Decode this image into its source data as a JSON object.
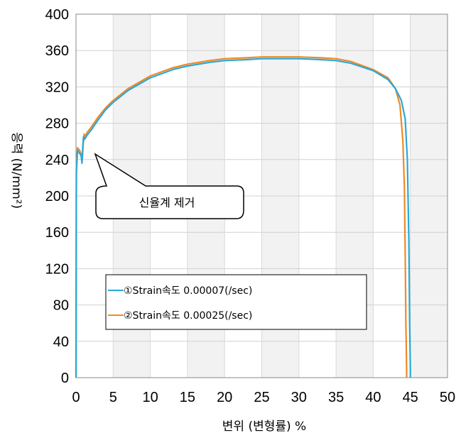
{
  "chart_data": {
    "type": "line",
    "xlabel": "변위 (변형률) %",
    "ylabel": "응력 (N/mm²)",
    "xlim": [
      0,
      50
    ],
    "ylim": [
      0,
      400
    ],
    "x_ticks": [
      0,
      5,
      10,
      15,
      20,
      25,
      30,
      35,
      40,
      45,
      50
    ],
    "y_ticks": [
      0,
      40,
      80,
      120,
      160,
      200,
      240,
      280,
      320,
      360,
      400
    ],
    "grid": true,
    "legend_position": "lower-left inside",
    "annotation": {
      "text": "신율계 제거",
      "x": 1.0,
      "y": 255
    },
    "series": [
      {
        "name": "①Strain속도 0.00007(/sec)",
        "color": "#2aa8d8",
        "x": [
          0,
          0.05,
          0.2,
          0.4,
          0.7,
          0.8,
          0.9,
          1.0,
          1.1,
          1.2,
          1.5,
          2,
          3,
          4,
          5,
          7,
          10,
          13,
          15,
          18,
          20,
          23,
          25,
          28,
          30,
          33,
          35,
          37,
          40,
          42,
          43,
          43.8,
          44.3,
          44.6,
          44.8,
          44.9,
          45.0,
          45.0
        ],
        "y": [
          0,
          225,
          250,
          248,
          244,
          236,
          252,
          265,
          262,
          263,
          267,
          272,
          284,
          295,
          303,
          316,
          330,
          339,
          343,
          347,
          349,
          350,
          351,
          351,
          351,
          350,
          349,
          346,
          338,
          328,
          318,
          305,
          285,
          240,
          150,
          60,
          10,
          0
        ]
      },
      {
        "name": "②Strain속도 0.00025(/sec)",
        "color": "#f08a24",
        "x": [
          0,
          0.05,
          0.2,
          0.5,
          0.75,
          0.85,
          0.95,
          1.1,
          1.2,
          1.5,
          2,
          3,
          4,
          5,
          7,
          10,
          13,
          15,
          18,
          20,
          23,
          25,
          28,
          30,
          33,
          35,
          37,
          40,
          42,
          43,
          43.6,
          44.0,
          44.2,
          44.3,
          44.4,
          44.5,
          44.5
        ],
        "y": [
          0,
          230,
          253,
          250,
          245,
          240,
          255,
          268,
          265,
          270,
          275,
          287,
          297,
          305,
          318,
          332,
          341,
          345,
          349,
          351,
          352,
          353,
          353,
          353,
          352,
          351,
          348,
          339,
          330,
          318,
          300,
          260,
          210,
          140,
          60,
          5,
          0
        ]
      }
    ]
  }
}
